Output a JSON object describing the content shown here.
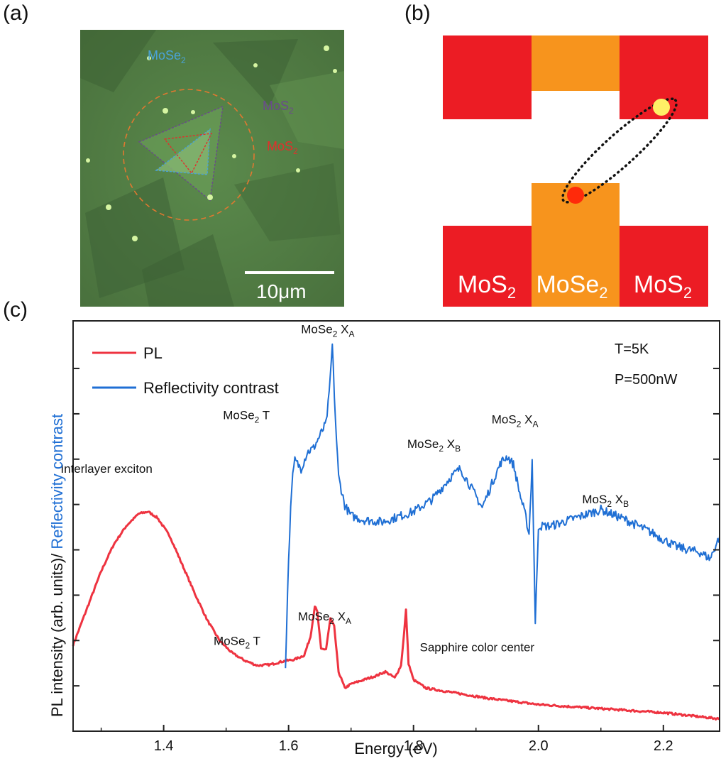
{
  "panels": {
    "a": {
      "letter": "(a)",
      "labels": {
        "mose2": "MoSe",
        "mos2_purple": "MoS",
        "mos2_red": "MoS",
        "sub": "2"
      },
      "scalebar": "10μm",
      "colors": {
        "mose2": "#4aa3d8",
        "mos2_purple": "#6a4a8c",
        "mos2_red": "#e0302c",
        "circle": "#e07830"
      }
    },
    "b": {
      "letter": "(b)",
      "labels": {
        "left": "MoS",
        "mid": "MoSe",
        "right": "MoS",
        "sub": "2"
      },
      "colors": {
        "mos2": "#ec1c24",
        "mose2": "#f7941d",
        "electron": "#fff066",
        "hole": "#ff2a0a"
      }
    },
    "c": {
      "letter": "(c)"
    }
  },
  "chart_data": {
    "type": "line",
    "xlabel": "Energy (eV)",
    "ylabel_black": "PL intensity (arb. units)/ ",
    "ylabel_blue": "Reflectivity contrast",
    "xlim": [
      1.255,
      2.29
    ],
    "ylim": [
      0,
      10
    ],
    "xticks": [
      1.4,
      1.6,
      1.8,
      2.0,
      2.2
    ],
    "xtick_labels": [
      "1.4",
      "1.6",
      "1.8",
      "2.0",
      "2.2"
    ],
    "legend": [
      {
        "name": "PL",
        "color": "#ee3340"
      },
      {
        "name": "Reflectivity contrast",
        "color": "#1f6fd4"
      }
    ],
    "conditions": [
      "T=5K",
      "P=500nW"
    ],
    "series": [
      {
        "name": "PL",
        "color": "#ee3340",
        "x": [
          1.255,
          1.28,
          1.3,
          1.32,
          1.34,
          1.36,
          1.375,
          1.39,
          1.41,
          1.43,
          1.45,
          1.47,
          1.49,
          1.51,
          1.53,
          1.55,
          1.57,
          1.59,
          1.61,
          1.625,
          1.635,
          1.642,
          1.646,
          1.652,
          1.66,
          1.667,
          1.673,
          1.68,
          1.69,
          1.7,
          1.72,
          1.74,
          1.755,
          1.77,
          1.78,
          1.785,
          1.788,
          1.792,
          1.8,
          1.82,
          1.86,
          1.92,
          2.0,
          2.1,
          2.2,
          2.29
        ],
        "values": [
          2.1,
          3.1,
          3.9,
          4.55,
          5.0,
          5.3,
          5.35,
          5.2,
          4.75,
          4.05,
          3.35,
          2.7,
          2.2,
          1.9,
          1.72,
          1.6,
          1.62,
          1.7,
          1.75,
          1.85,
          2.3,
          3.05,
          2.9,
          2.0,
          2.0,
          2.75,
          2.55,
          1.45,
          1.05,
          1.15,
          1.25,
          1.35,
          1.45,
          1.3,
          1.6,
          2.4,
          2.95,
          1.65,
          1.25,
          1.05,
          0.95,
          0.8,
          0.65,
          0.55,
          0.45,
          0.3
        ]
      },
      {
        "name": "Reflectivity contrast",
        "color": "#1f6fd4",
        "x": [
          1.595,
          1.6,
          1.605,
          1.61,
          1.62,
          1.63,
          1.64,
          1.65,
          1.66,
          1.665,
          1.67,
          1.675,
          1.68,
          1.69,
          1.7,
          1.72,
          1.75,
          1.78,
          1.8,
          1.83,
          1.86,
          1.875,
          1.89,
          1.91,
          1.93,
          1.94,
          1.95,
          1.96,
          1.97,
          1.98,
          1.985,
          1.99,
          1.995,
          2.0,
          2.02,
          2.06,
          2.1,
          2.14,
          2.18,
          2.22,
          2.26,
          2.275,
          2.29
        ],
        "values": [
          1.6,
          4.2,
          6.0,
          6.6,
          6.4,
          6.8,
          6.9,
          7.2,
          7.5,
          8.2,
          9.4,
          7.6,
          6.2,
          5.5,
          5.25,
          5.15,
          5.1,
          5.25,
          5.35,
          5.65,
          6.2,
          6.4,
          6.0,
          5.45,
          6.2,
          6.55,
          6.7,
          6.5,
          5.8,
          5.2,
          4.8,
          6.6,
          2.6,
          5.0,
          5.0,
          5.2,
          5.4,
          5.15,
          4.85,
          4.5,
          4.35,
          4.2,
          4.75
        ]
      }
    ],
    "annotations": [
      {
        "main": "Interlayer exciton",
        "sub": "",
        "tail": "",
        "x": 1.235,
        "y": 6.3
      },
      {
        "main": "MoSe",
        "sub": "2",
        "tail": " T",
        "x": 1.48,
        "y": 2.1
      },
      {
        "main": "MoSe",
        "sub": "2",
        "tail": " X",
        "tailsub": "A",
        "x": 1.615,
        "y": 2.7
      },
      {
        "main": "Sapphire color center",
        "sub": "",
        "tail": "",
        "x": 1.81,
        "y": 1.95
      },
      {
        "main": "MoSe",
        "sub": "2",
        "tail": " T",
        "x": 1.495,
        "y": 7.6
      },
      {
        "main": "MoSe",
        "sub": "2",
        "tail": " X",
        "tailsub": "A",
        "x": 1.62,
        "y": 9.7
      },
      {
        "main": "MoSe",
        "sub": "2",
        "tail": " X",
        "tailsub": "B",
        "x": 1.79,
        "y": 6.9
      },
      {
        "main": "MoS",
        "sub": "2",
        "tail": " X",
        "tailsub": "A",
        "x": 1.925,
        "y": 7.5
      },
      {
        "main": "MoS",
        "sub": "2",
        "tail": " X",
        "tailsub": "B",
        "x": 2.07,
        "y": 5.55
      }
    ]
  }
}
